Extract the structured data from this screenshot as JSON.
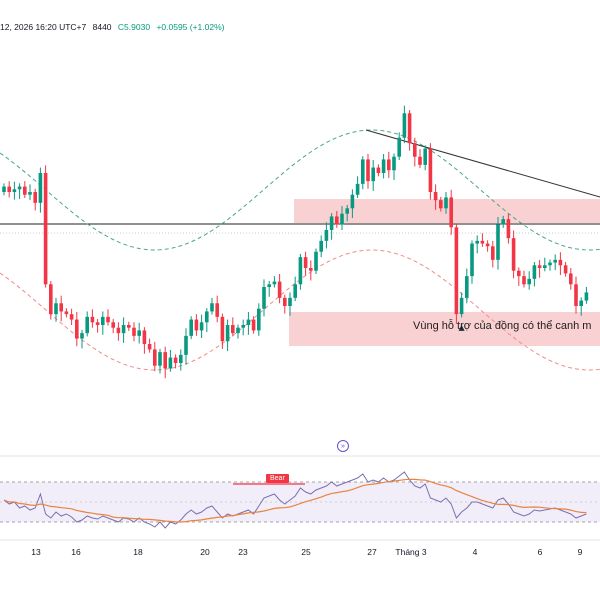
{
  "header": {
    "date": "12, 2026 16:20 UTC+7",
    "open_partial": "8440",
    "close": "C5.9030",
    "change": "+0.0595 (+1.02%)"
  },
  "annotation": "Vùng hỗ trợ của đồng có thể canh m",
  "rsi_label": "Bear",
  "nav_icon": "»",
  "colors": {
    "up": "#089981",
    "down": "#f23645",
    "zone": "#f8c9cb",
    "band_upper": "#4aa58c",
    "band_lower": "#f28b8b",
    "rsi_line": "#7b6fb0",
    "rsi_ma": "#e8843d",
    "rsi_bg": "#ede7f6"
  },
  "chart_data": {
    "type": "candlestick",
    "x_tick_labels": [
      "13",
      "16",
      "18",
      "20",
      "23",
      "25",
      "27",
      "Tháng 3",
      "4",
      "6",
      "9"
    ],
    "price": [
      5.93,
      5.92,
      5.925,
      5.93,
      5.915,
      5.92,
      5.9,
      5.955,
      5.75,
      5.695,
      5.715,
      5.7,
      5.695,
      5.685,
      5.65,
      5.66,
      5.69,
      5.68,
      5.675,
      5.69,
      5.68,
      5.67,
      5.66,
      5.675,
      5.67,
      5.655,
      5.665,
      5.64,
      5.63,
      5.6,
      5.625,
      5.595,
      5.615,
      5.605,
      5.62,
      5.655,
      5.685,
      5.665,
      5.68,
      5.7,
      5.715,
      5.69,
      5.645,
      5.675,
      5.66,
      5.67,
      5.675,
      5.685,
      5.665,
      5.705,
      5.745,
      5.75,
      5.755,
      5.725,
      5.71,
      5.725,
      5.75,
      5.8,
      5.78,
      5.775,
      5.81,
      5.83,
      5.85,
      5.875,
      5.86,
      5.88,
      5.89,
      5.915,
      5.935,
      5.98,
      5.94,
      5.965,
      5.955,
      5.98,
      5.96,
      5.985,
      6.02,
      6.065,
      6.01,
      5.985,
      5.97,
      6.0,
      5.92,
      5.905,
      5.89,
      5.91,
      5.855,
      5.695,
      5.725,
      5.765,
      5.825,
      5.83,
      5.825,
      5.82,
      5.795,
      5.86,
      5.87,
      5.835,
      5.775,
      5.765,
      5.75,
      5.76,
      5.785,
      5.78,
      5.785,
      5.79,
      5.795,
      5.785,
      5.77,
      5.75,
      5.71,
      5.72,
      5.735
    ],
    "y_range": [
      5.5,
      6.2
    ],
    "series": [
      {
        "name": "Upper band (dashed, green)"
      },
      {
        "name": "Lower band (dashed, pink)"
      },
      {
        "name": "Trendline (black)"
      },
      {
        "name": "Horizontal level (black)"
      },
      {
        "name": "RSI"
      },
      {
        "name": "RSI MA (orange)"
      }
    ],
    "rsi_values": [
      52,
      48,
      50,
      44,
      46,
      42,
      44,
      58,
      38,
      34,
      40,
      36,
      38,
      35,
      30,
      32,
      36,
      34,
      33,
      36,
      34,
      32,
      30,
      34,
      33,
      30,
      34,
      30,
      28,
      25,
      30,
      24,
      30,
      28,
      32,
      38,
      42,
      38,
      40,
      44,
      46,
      40,
      34,
      38,
      36,
      38,
      40,
      42,
      38,
      46,
      54,
      56,
      58,
      52,
      48,
      52,
      56,
      64,
      60,
      58,
      62,
      64,
      66,
      70,
      66,
      68,
      70,
      72,
      74,
      78,
      70,
      72,
      70,
      74,
      70,
      72,
      76,
      80,
      72,
      66,
      64,
      68,
      54,
      52,
      50,
      54,
      48,
      34,
      40,
      44,
      50,
      50,
      48,
      46,
      44,
      52,
      54,
      48,
      40,
      38,
      36,
      38,
      42,
      41,
      42,
      43,
      44,
      42,
      40,
      38,
      34,
      36,
      38
    ],
    "rsi_range": [
      20,
      90
    ],
    "rsi_ma_window": 14
  }
}
